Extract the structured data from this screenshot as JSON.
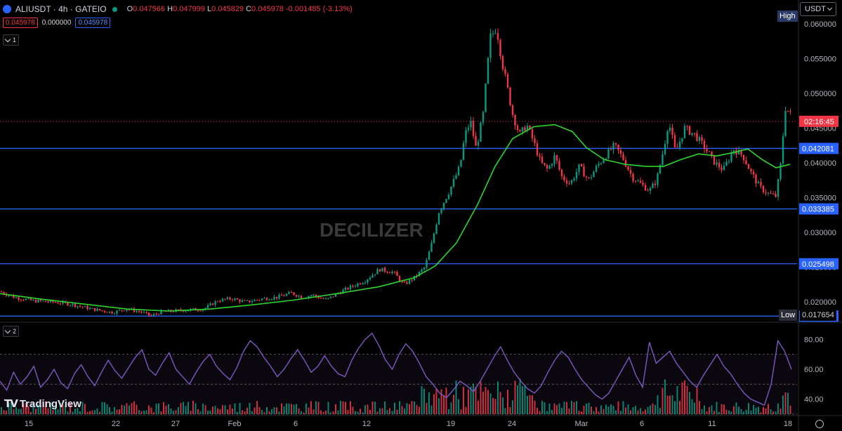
{
  "header": {
    "symbol": "ALIUSDT · 4h · GATEIO",
    "ohlc": {
      "O": "0.047566",
      "H": "0.047999",
      "L": "0.045829",
      "C": "0.045978",
      "change": "-0.001485 (-3.13%)"
    },
    "value_boxes": {
      "left": "0.045978",
      "mid": "0.000000",
      "right": "0.045978"
    },
    "pane1_label": "1",
    "pane2_label": "2"
  },
  "currency": "USDT",
  "watermark": "DECILIZER",
  "brand": "TradingView",
  "colors": {
    "up": "#089981",
    "down": "#f23645",
    "ma": "#2bd52b",
    "rsi": "#7e57c2",
    "hline": "#2962ff",
    "bg": "#000000"
  },
  "chart_data": [
    {
      "type": "candlestick",
      "pair": "ALI/USDT",
      "interval": "4h",
      "y_ticks": [
        "0.020000",
        "0.025000",
        "0.030000",
        "0.035000",
        "0.040000",
        "0.045000",
        "0.050000",
        "0.055000",
        "0.060000"
      ],
      "ylim": [
        0.0174,
        0.0612
      ],
      "x_ticks": [
        "15",
        "22",
        "27",
        "Feb",
        "6",
        "12",
        "19",
        "24",
        "Mar",
        "6",
        "11",
        "18"
      ],
      "grid": false,
      "horizontal_levels": [
        "0.042081",
        "0.033385",
        "0.025498",
        "0.017974"
      ],
      "current_price_countdown": "02:16:45",
      "high_label": "High",
      "low_label": "Low",
      "low_value": "0.017654",
      "price_path": [
        [
          0,
          0.0215
        ],
        [
          20,
          0.0207
        ],
        [
          45,
          0.0202
        ],
        [
          75,
          0.02
        ],
        [
          100,
          0.0197
        ],
        [
          130,
          0.019
        ],
        [
          160,
          0.0185
        ],
        [
          180,
          0.019
        ],
        [
          200,
          0.0186
        ],
        [
          215,
          0.018
        ],
        [
          230,
          0.0186
        ],
        [
          260,
          0.0188
        ],
        [
          290,
          0.019
        ],
        [
          310,
          0.0202
        ],
        [
          330,
          0.0205
        ],
        [
          350,
          0.02
        ],
        [
          375,
          0.0205
        ],
        [
          395,
          0.0207
        ],
        [
          415,
          0.0213
        ],
        [
          430,
          0.0207
        ],
        [
          445,
          0.021
        ],
        [
          465,
          0.0203
        ],
        [
          480,
          0.0212
        ],
        [
          500,
          0.0222
        ],
        [
          520,
          0.0231
        ],
        [
          540,
          0.0247
        ],
        [
          560,
          0.0243
        ],
        [
          575,
          0.0225
        ],
        [
          590,
          0.0235
        ],
        [
          605,
          0.025
        ],
        [
          615,
          0.0285
        ],
        [
          625,
          0.033
        ],
        [
          640,
          0.036
        ],
        [
          655,
          0.0395
        ],
        [
          662,
          0.044
        ],
        [
          670,
          0.046
        ],
        [
          678,
          0.042
        ],
        [
          688,
          0.047
        ],
        [
          698,
          0.058
        ],
        [
          707,
          0.0595
        ],
        [
          715,
          0.0545
        ],
        [
          722,
          0.051
        ],
        [
          730,
          0.047
        ],
        [
          740,
          0.044
        ],
        [
          750,
          0.0455
        ],
        [
          760,
          0.043
        ],
        [
          770,
          0.04
        ],
        [
          780,
          0.039
        ],
        [
          790,
          0.041
        ],
        [
          800,
          0.038
        ],
        [
          812,
          0.037
        ],
        [
          825,
          0.0395
        ],
        [
          838,
          0.0375
        ],
        [
          850,
          0.0395
        ],
        [
          862,
          0.041
        ],
        [
          875,
          0.0425
        ],
        [
          888,
          0.0405
        ],
        [
          900,
          0.038
        ],
        [
          912,
          0.037
        ],
        [
          925,
          0.036
        ],
        [
          935,
          0.0375
        ],
        [
          945,
          0.042
        ],
        [
          952,
          0.046
        ],
        [
          962,
          0.0415
        ],
        [
          975,
          0.045
        ],
        [
          990,
          0.044
        ],
        [
          1005,
          0.042
        ],
        [
          1018,
          0.04
        ],
        [
          1030,
          0.039
        ],
        [
          1045,
          0.042
        ],
        [
          1058,
          0.041
        ],
        [
          1070,
          0.0385
        ],
        [
          1082,
          0.0365
        ],
        [
          1095,
          0.0355
        ],
        [
          1105,
          0.0352
        ],
        [
          1112,
          0.04
        ],
        [
          1118,
          0.048
        ],
        [
          1125,
          0.047
        ]
      ],
      "ma_path": [
        [
          0,
          0.0212
        ],
        [
          60,
          0.0204
        ],
        [
          120,
          0.0197
        ],
        [
          180,
          0.019
        ],
        [
          240,
          0.0187
        ],
        [
          300,
          0.019
        ],
        [
          360,
          0.0196
        ],
        [
          420,
          0.0203
        ],
        [
          480,
          0.0212
        ],
        [
          540,
          0.0222
        ],
        [
          590,
          0.0235
        ],
        [
          620,
          0.0252
        ],
        [
          650,
          0.0285
        ],
        [
          680,
          0.034
        ],
        [
          705,
          0.0395
        ],
        [
          730,
          0.0435
        ],
        [
          760,
          0.0452
        ],
        [
          790,
          0.0455
        ],
        [
          815,
          0.0445
        ],
        [
          835,
          0.0422
        ],
        [
          860,
          0.0405
        ],
        [
          890,
          0.0398
        ],
        [
          920,
          0.0395
        ],
        [
          945,
          0.0395
        ],
        [
          970,
          0.0405
        ],
        [
          995,
          0.0413
        ],
        [
          1020,
          0.041
        ],
        [
          1045,
          0.0415
        ],
        [
          1065,
          0.042
        ],
        [
          1085,
          0.0405
        ],
        [
          1105,
          0.0393
        ],
        [
          1125,
          0.0398
        ]
      ]
    },
    {
      "type": "line",
      "series": [
        {
          "name": "RSI",
          "values": [
            52,
            46,
            58,
            50,
            55,
            62,
            48,
            53,
            60,
            51,
            47,
            57,
            63,
            55,
            49,
            58,
            66,
            59,
            54,
            61,
            68,
            73,
            60,
            56,
            64,
            71,
            60,
            55,
            50,
            58,
            65,
            70,
            62,
            57,
            53,
            61,
            72,
            79,
            75,
            68,
            62,
            55,
            60,
            67,
            73,
            66,
            58,
            62,
            69,
            62,
            57,
            55,
            66,
            74,
            80,
            84,
            76,
            66,
            60,
            70,
            77,
            72,
            64,
            55,
            50,
            44,
            41,
            46,
            52,
            49,
            45,
            52,
            60,
            68,
            75,
            66,
            58,
            52,
            47,
            44,
            49,
            58,
            66,
            72,
            68,
            60,
            53,
            48,
            43,
            40,
            44,
            52,
            60,
            68,
            56,
            48,
            78,
            64,
            68,
            72,
            64,
            58,
            52,
            48,
            56,
            63,
            70,
            62,
            57,
            50,
            44,
            40,
            38,
            36,
            50,
            79,
            72,
            60
          ]
        }
      ],
      "y_ticks": [
        "40.00",
        "60.00",
        "80.00"
      ],
      "ylim": [
        30,
        90
      ],
      "band": [
        30,
        70
      ]
    }
  ]
}
